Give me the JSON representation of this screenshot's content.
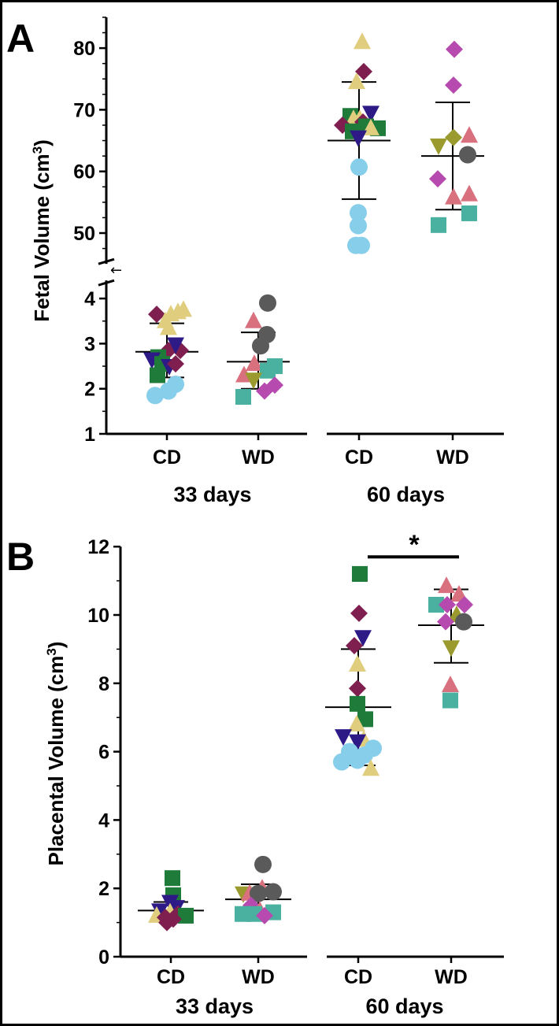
{
  "colors": {
    "light_blue": "#87CEEB",
    "green": "#1E7B3A",
    "navy": "#2E1A87",
    "maroon": "#7E1F4F",
    "khaki": "#E0CD7E",
    "pink": "#D9707E",
    "magenta": "#B64AAE",
    "olive": "#9A9A2E",
    "gray": "#5A5A5A",
    "teal": "#4AB0A0"
  },
  "chart_data": [
    {
      "type": "scatter",
      "panel_label": "A",
      "title": "",
      "ylabel": "Fetal Volume (cm",
      "ylabel_sup": "3",
      "ylabel_close": ")",
      "ylim": [
        1,
        85
      ],
      "y_axis_break": {
        "lower_range": [
          1,
          4.4
        ],
        "upper_range": [
          45,
          85
        ],
        "marker": "←"
      },
      "ticks_lower": [
        "1",
        "2",
        "3",
        "4"
      ],
      "ticks_upper": [
        "50",
        "60",
        "70",
        "80"
      ],
      "categories": [
        "CD",
        "WD",
        "CD",
        "WD"
      ],
      "groups": [
        "33 days",
        "60 days"
      ],
      "summary": [
        {
          "mean": 2.82,
          "sd_low": 2.25,
          "sd_high": 3.45
        },
        {
          "mean": 2.6,
          "sd_low": 2.0,
          "sd_high": 3.25
        },
        {
          "mean": 65.0,
          "sd_low": 55.5,
          "sd_high": 74.5
        },
        {
          "mean": 62.5,
          "sd_low": 53.8,
          "sd_high": 71.2
        }
      ],
      "points": [
        [
          {
            "v": 3.65,
            "m": "diamond",
            "c": "maroon",
            "dx": -0.65
          },
          {
            "v": 3.75,
            "m": "triangle",
            "c": "khaki",
            "dx": 1.05
          },
          {
            "v": 3.7,
            "m": "triangle",
            "c": "khaki",
            "dx": 0.7
          },
          {
            "v": 3.65,
            "m": "triangle",
            "c": "khaki",
            "dx": 0.25
          },
          {
            "v": 3.5,
            "m": "triangle",
            "c": "khaki",
            "dx": -0.1
          },
          {
            "v": 3.35,
            "m": "triangle",
            "c": "khaki",
            "dx": 0.1
          },
          {
            "v": 2.85,
            "m": "diamond",
            "c": "maroon",
            "dx": 0.1
          },
          {
            "v": 2.85,
            "m": "diamond",
            "c": "maroon",
            "dx": 0.85
          },
          {
            "v": 2.98,
            "m": "invtriangle",
            "c": "navy",
            "dx": 0.55
          },
          {
            "v": 2.7,
            "m": "square",
            "c": "green",
            "dx": -0.55
          },
          {
            "v": 2.65,
            "m": "invtriangle",
            "c": "navy",
            "dx": -0.95
          },
          {
            "v": 2.55,
            "m": "square",
            "c": "green",
            "dx": -0.3
          },
          {
            "v": 2.5,
            "m": "invtriangle",
            "c": "navy",
            "dx": 0.15
          },
          {
            "v": 2.55,
            "m": "diamond",
            "c": "maroon",
            "dx": 0.55
          },
          {
            "v": 2.3,
            "m": "square",
            "c": "green",
            "dx": -0.6
          },
          {
            "v": 2.1,
            "m": "circle",
            "c": "light_blue",
            "dx": 0.55
          },
          {
            "v": 1.95,
            "m": "circle",
            "c": "light_blue",
            "dx": 0.1
          },
          {
            "v": 1.85,
            "m": "circle",
            "c": "light_blue",
            "dx": -0.75
          }
        ],
        [
          {
            "v": 3.9,
            "m": "circle",
            "c": "gray",
            "dx": 0.6
          },
          {
            "v": 3.5,
            "m": "triangle",
            "c": "pink",
            "dx": -0.3
          },
          {
            "v": 3.2,
            "m": "circle",
            "c": "gray",
            "dx": 0.55
          },
          {
            "v": 2.95,
            "m": "circle",
            "c": "gray",
            "dx": 0.15
          },
          {
            "v": 2.55,
            "m": "triangle",
            "c": "pink",
            "dx": -0.25
          },
          {
            "v": 2.5,
            "m": "square",
            "c": "teal",
            "dx": 1.05
          },
          {
            "v": 2.4,
            "m": "square",
            "c": "teal",
            "dx": 0.6
          },
          {
            "v": 2.3,
            "m": "triangle",
            "c": "pink",
            "dx": -0.9
          },
          {
            "v": 2.2,
            "m": "invtriangle",
            "c": "olive",
            "dx": -0.3
          },
          {
            "v": 2.08,
            "m": "diamond",
            "c": "magenta",
            "dx": 1.05
          },
          {
            "v": 1.95,
            "m": "diamond",
            "c": "magenta",
            "dx": 0.4
          },
          {
            "v": 1.82,
            "m": "square",
            "c": "teal",
            "dx": -0.95
          }
        ],
        [
          {
            "v": 81,
            "m": "triangle",
            "c": "khaki",
            "dx": 0.2
          },
          {
            "v": 76.2,
            "m": "diamond",
            "c": "maroon",
            "dx": 0.3
          },
          {
            "v": 74.5,
            "m": "triangle",
            "c": "khaki",
            "dx": -0.15
          },
          {
            "v": 69.5,
            "m": "invtriangle",
            "c": "navy",
            "dx": 0.75
          },
          {
            "v": 69,
            "m": "square",
            "c": "green",
            "dx": -0.55
          },
          {
            "v": 68.5,
            "m": "triangle",
            "c": "khaki",
            "dx": -0.35
          },
          {
            "v": 68.5,
            "m": "triangle",
            "c": "khaki",
            "dx": 0.05
          },
          {
            "v": 68,
            "m": "diamond",
            "c": "maroon",
            "dx": 0.25
          },
          {
            "v": 67.5,
            "m": "diamond",
            "c": "maroon",
            "dx": -1.05
          },
          {
            "v": 67.3,
            "m": "square",
            "c": "green",
            "dx": 0.45
          },
          {
            "v": 67,
            "m": "square",
            "c": "green",
            "dx": 1.2
          },
          {
            "v": 67,
            "m": "triangle",
            "c": "khaki",
            "dx": 0.75
          },
          {
            "v": 66.5,
            "m": "square",
            "c": "green",
            "dx": -0.4
          },
          {
            "v": 65.5,
            "m": "invtriangle",
            "c": "navy",
            "dx": -0.05
          },
          {
            "v": 60.7,
            "m": "circle",
            "c": "light_blue",
            "dx": 0.0
          },
          {
            "v": 53.3,
            "m": "circle",
            "c": "light_blue",
            "dx": -0.05
          },
          {
            "v": 51.2,
            "m": "circle",
            "c": "light_blue",
            "dx": -0.05
          },
          {
            "v": 48,
            "m": "circle",
            "c": "light_blue",
            "dx": -0.2
          },
          {
            "v": 48,
            "m": "circle",
            "c": "light_blue",
            "dx": 0.15
          }
        ],
        [
          {
            "v": 79.8,
            "m": "diamond",
            "c": "magenta",
            "dx": 0.1
          },
          {
            "v": 74,
            "m": "diamond",
            "c": "magenta",
            "dx": 0.05
          },
          {
            "v": 65.8,
            "m": "triangle",
            "c": "pink",
            "dx": 1.05
          },
          {
            "v": 65.5,
            "m": "diamond",
            "c": "olive",
            "dx": 0.05
          },
          {
            "v": 64.2,
            "m": "invtriangle",
            "c": "olive",
            "dx": -0.9
          },
          {
            "v": 62.7,
            "m": "circle",
            "c": "gray",
            "dx": 0.95
          },
          {
            "v": 58.8,
            "m": "diamond",
            "c": "magenta",
            "dx": -0.95
          },
          {
            "v": 56.3,
            "m": "triangle",
            "c": "pink",
            "dx": 1.05
          },
          {
            "v": 55.8,
            "m": "triangle",
            "c": "pink",
            "dx": 0.05
          },
          {
            "v": 53.2,
            "m": "square",
            "c": "teal",
            "dx": 1.05
          },
          {
            "v": 51.3,
            "m": "square",
            "c": "teal",
            "dx": -0.9
          }
        ]
      ]
    },
    {
      "type": "scatter",
      "panel_label": "B",
      "title": "",
      "ylabel": "Placental Volume (cm",
      "ylabel_sup": "3",
      "ylabel_close": ")",
      "ylim": [
        0,
        12
      ],
      "ticks": [
        "0",
        "2",
        "4",
        "6",
        "8",
        "10",
        "12"
      ],
      "categories": [
        "CD",
        "WD",
        "CD",
        "WD"
      ],
      "groups": [
        "33 days",
        "60 days"
      ],
      "significance": {
        "between": [
          2,
          3
        ],
        "label": "*"
      },
      "summary": [
        {
          "mean": 1.35,
          "sd_low": 1.1,
          "sd_high": 1.6
        },
        {
          "mean": 1.68,
          "sd_low": 1.25,
          "sd_high": 2.12
        },
        {
          "mean": 7.3,
          "sd_low": 5.6,
          "sd_high": 9.0
        },
        {
          "mean": 9.7,
          "sd_low": 8.6,
          "sd_high": 10.75
        }
      ],
      "points": [
        [
          {
            "v": 2.3,
            "m": "square",
            "c": "green",
            "dx": 0.1
          },
          {
            "v": 1.8,
            "m": "square",
            "c": "green",
            "dx": 0.15
          },
          {
            "v": 1.6,
            "m": "invtriangle",
            "c": "navy",
            "dx": -0.05
          },
          {
            "v": 1.45,
            "m": "invtriangle",
            "c": "navy",
            "dx": 0.35
          },
          {
            "v": 1.35,
            "m": "invtriangle",
            "c": "navy",
            "dx": -0.7
          },
          {
            "v": 1.3,
            "m": "triangle",
            "c": "khaki",
            "dx": -0.05
          },
          {
            "v": 1.25,
            "m": "diamond",
            "c": "maroon",
            "dx": 0.45
          },
          {
            "v": 1.2,
            "m": "square",
            "c": "green",
            "dx": 0.95
          },
          {
            "v": 1.2,
            "m": "triangle",
            "c": "khaki",
            "dx": -0.9
          },
          {
            "v": 1.15,
            "m": "diamond",
            "c": "maroon",
            "dx": -0.35
          },
          {
            "v": 1.1,
            "m": "diamond",
            "c": "maroon",
            "dx": 0.15
          },
          {
            "v": 1.0,
            "m": "diamond",
            "c": "maroon",
            "dx": -0.25
          }
        ],
        [
          {
            "v": 2.7,
            "m": "circle",
            "c": "gray",
            "dx": 0.3
          },
          {
            "v": 2.0,
            "m": "triangle",
            "c": "pink",
            "dx": 0.25
          },
          {
            "v": 1.9,
            "m": "circle",
            "c": "gray",
            "dx": 0.95
          },
          {
            "v": 1.85,
            "m": "invtriangle",
            "c": "olive",
            "dx": -0.95
          },
          {
            "v": 1.85,
            "m": "triangle",
            "c": "pink",
            "dx": -0.55
          },
          {
            "v": 1.85,
            "m": "circle",
            "c": "gray",
            "dx": 0.0
          },
          {
            "v": 1.5,
            "m": "diamond",
            "c": "magenta",
            "dx": -0.45
          },
          {
            "v": 1.35,
            "m": "triangle",
            "c": "pink",
            "dx": 0.1
          },
          {
            "v": 1.3,
            "m": "square",
            "c": "teal",
            "dx": 0.95
          },
          {
            "v": 1.25,
            "m": "square",
            "c": "teal",
            "dx": -1.0
          },
          {
            "v": 1.25,
            "m": "square",
            "c": "teal",
            "dx": -0.25
          },
          {
            "v": 1.2,
            "m": "diamond",
            "c": "magenta",
            "dx": 0.4
          }
        ],
        [
          {
            "v": 11.2,
            "m": "square",
            "c": "green",
            "dx": 0.1
          },
          {
            "v": 10.05,
            "m": "diamond",
            "c": "maroon",
            "dx": 0.05
          },
          {
            "v": 9.35,
            "m": "invtriangle",
            "c": "navy",
            "dx": 0.3
          },
          {
            "v": 9.1,
            "m": "diamond",
            "c": "maroon",
            "dx": -0.25
          },
          {
            "v": 8.55,
            "m": "triangle",
            "c": "khaki",
            "dx": -0.05
          },
          {
            "v": 7.85,
            "m": "diamond",
            "c": "maroon",
            "dx": -0.05
          },
          {
            "v": 7.4,
            "m": "square",
            "c": "green",
            "dx": -0.05
          },
          {
            "v": 6.95,
            "m": "square",
            "c": "green",
            "dx": 0.45
          },
          {
            "v": 6.8,
            "m": "triangle",
            "c": "khaki",
            "dx": -0.1
          },
          {
            "v": 6.45,
            "m": "invtriangle",
            "c": "navy",
            "dx": -0.95
          },
          {
            "v": 6.35,
            "m": "triangle",
            "c": "khaki",
            "dx": 0.35
          },
          {
            "v": 6.3,
            "m": "invtriangle",
            "c": "navy",
            "dx": -0.05
          },
          {
            "v": 6.1,
            "m": "circle",
            "c": "light_blue",
            "dx": 0.95
          },
          {
            "v": 6.0,
            "m": "circle",
            "c": "light_blue",
            "dx": -0.55
          },
          {
            "v": 5.9,
            "m": "circle",
            "c": "light_blue",
            "dx": 0.4
          },
          {
            "v": 5.75,
            "m": "circle",
            "c": "light_blue",
            "dx": -0.05
          },
          {
            "v": 5.7,
            "m": "circle",
            "c": "light_blue",
            "dx": -1.05
          },
          {
            "v": 5.5,
            "m": "triangle",
            "c": "khaki",
            "dx": 0.8
          }
        ],
        [
          {
            "v": 10.85,
            "m": "triangle",
            "c": "pink",
            "dx": -0.3
          },
          {
            "v": 10.6,
            "m": "triangle",
            "c": "pink",
            "dx": 0.5
          },
          {
            "v": 10.3,
            "m": "square",
            "c": "teal",
            "dx": -0.95
          },
          {
            "v": 10.3,
            "m": "diamond",
            "c": "magenta",
            "dx": -0.25
          },
          {
            "v": 10.3,
            "m": "diamond",
            "c": "magenta",
            "dx": 0.85
          },
          {
            "v": 10.0,
            "m": "triangle",
            "c": "olive",
            "dx": 0.35
          },
          {
            "v": 9.8,
            "m": "diamond",
            "c": "magenta",
            "dx": -0.35
          },
          {
            "v": 9.8,
            "m": "circle",
            "c": "gray",
            "dx": 0.8
          },
          {
            "v": 9.05,
            "m": "invtriangle",
            "c": "olive",
            "dx": 0.0
          },
          {
            "v": 7.95,
            "m": "triangle",
            "c": "pink",
            "dx": -0.05
          },
          {
            "v": 7.5,
            "m": "square",
            "c": "teal",
            "dx": -0.05
          }
        ]
      ]
    }
  ]
}
